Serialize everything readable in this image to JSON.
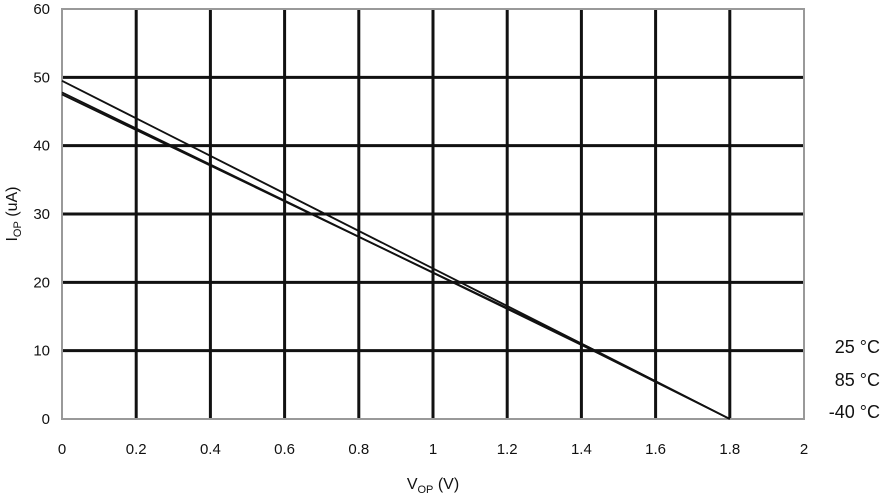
{
  "chart_data": {
    "type": "line",
    "title": "",
    "xlabel": {
      "main": "V",
      "sub": "OP",
      "unit": " (V)"
    },
    "ylabel": {
      "main": "I",
      "sub": "OP",
      "unit": " (uA)"
    },
    "xlim": [
      0,
      2
    ],
    "ylim": [
      0,
      60
    ],
    "xticks": [
      0,
      0.2,
      0.4,
      0.6,
      0.8,
      1,
      1.2,
      1.4,
      1.6,
      1.8,
      2
    ],
    "xtick_labels": [
      "0",
      "0.2",
      "0.4",
      "0.6",
      "0.8",
      "1",
      "1.2",
      "1.4",
      "1.6",
      "1.8",
      "2"
    ],
    "yticks": [
      0,
      10,
      20,
      30,
      40,
      50,
      60
    ],
    "ytick_labels": [
      "0",
      "10",
      "20",
      "30",
      "40",
      "50",
      "60"
    ],
    "grid": true,
    "legend_placement": "right",
    "series": [
      {
        "name": "25 °C",
        "x": [
          0,
          1.42,
          1.8
        ],
        "y": [
          47.5,
          10.5,
          0
        ]
      },
      {
        "name": "85 °C",
        "x": [
          0,
          1.42,
          1.8
        ],
        "y": [
          49.5,
          10.5,
          0
        ]
      },
      {
        "name": "-40 °C",
        "x": [
          0,
          1.42,
          1.8
        ],
        "y": [
          47.8,
          10.3,
          0
        ]
      }
    ]
  }
}
